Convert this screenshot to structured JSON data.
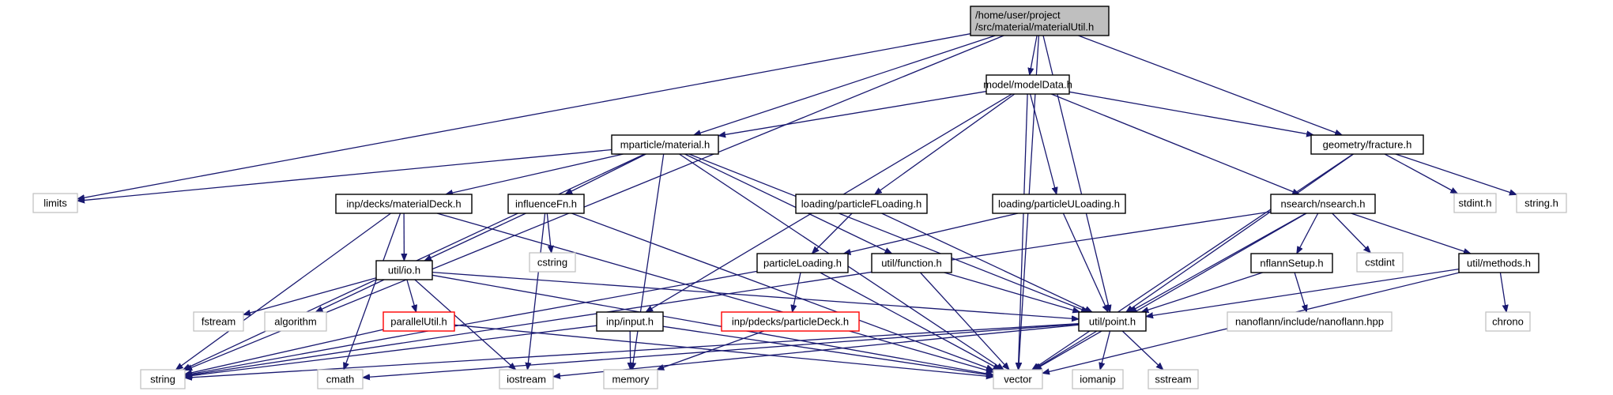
{
  "graph": {
    "title_node": "root",
    "nodes": [
      {
        "id": "root",
        "kind": "root",
        "lines": [
          "/home/user/project",
          "/src/material/materialUtil.h"
        ]
      },
      {
        "id": "modelData",
        "kind": "box",
        "lines": [
          "model/modelData.h"
        ]
      },
      {
        "id": "material",
        "kind": "box",
        "lines": [
          "mparticle/material.h"
        ]
      },
      {
        "id": "fracture",
        "kind": "box",
        "lines": [
          "geometry/fracture.h"
        ]
      },
      {
        "id": "materialDeck",
        "kind": "box",
        "lines": [
          "inp/decks/materialDeck.h"
        ]
      },
      {
        "id": "influenceFn",
        "kind": "box",
        "lines": [
          "influenceFn.h"
        ]
      },
      {
        "id": "pFLoading",
        "kind": "box",
        "lines": [
          "loading/particleFLoading.h"
        ]
      },
      {
        "id": "pULoading",
        "kind": "box",
        "lines": [
          "loading/particleULoading.h"
        ]
      },
      {
        "id": "nsearch",
        "kind": "box",
        "lines": [
          "nsearch/nsearch.h"
        ]
      },
      {
        "id": "io",
        "kind": "box",
        "lines": [
          "util/io.h"
        ]
      },
      {
        "id": "particleLoading",
        "kind": "box",
        "lines": [
          "particleLoading.h"
        ]
      },
      {
        "id": "function",
        "kind": "box",
        "lines": [
          "util/function.h"
        ]
      },
      {
        "id": "nflannSetup",
        "kind": "box",
        "lines": [
          "nflannSetup.h"
        ]
      },
      {
        "id": "methods",
        "kind": "box",
        "lines": [
          "util/methods.h"
        ]
      },
      {
        "id": "parallelUtil",
        "kind": "red",
        "lines": [
          "parallelUtil.h"
        ]
      },
      {
        "id": "input",
        "kind": "box",
        "lines": [
          "inp/input.h"
        ]
      },
      {
        "id": "particleDeck",
        "kind": "red",
        "lines": [
          "inp/pdecks/particleDeck.h"
        ]
      },
      {
        "id": "point",
        "kind": "box",
        "lines": [
          "util/point.h"
        ]
      },
      {
        "id": "limits",
        "kind": "ext",
        "lines": [
          "limits"
        ]
      },
      {
        "id": "cstring",
        "kind": "ext",
        "lines": [
          "cstring"
        ]
      },
      {
        "id": "cstdint",
        "kind": "ext",
        "lines": [
          "cstdint"
        ]
      },
      {
        "id": "stdint",
        "kind": "ext",
        "lines": [
          "stdint.h"
        ]
      },
      {
        "id": "stringh",
        "kind": "ext",
        "lines": [
          "string.h"
        ]
      },
      {
        "id": "fstream",
        "kind": "ext",
        "lines": [
          "fstream"
        ]
      },
      {
        "id": "algorithm",
        "kind": "ext",
        "lines": [
          "algorithm"
        ]
      },
      {
        "id": "nanoflann",
        "kind": "ext",
        "lines": [
          "nanoflann/include/nanoflann.hpp"
        ]
      },
      {
        "id": "chrono",
        "kind": "ext",
        "lines": [
          "chrono"
        ]
      },
      {
        "id": "string",
        "kind": "ext",
        "lines": [
          "string"
        ]
      },
      {
        "id": "cmath",
        "kind": "ext",
        "lines": [
          "cmath"
        ]
      },
      {
        "id": "iostream",
        "kind": "ext",
        "lines": [
          "iostream"
        ]
      },
      {
        "id": "memory",
        "kind": "ext",
        "lines": [
          "memory"
        ]
      },
      {
        "id": "vector",
        "kind": "ext",
        "lines": [
          "vector"
        ]
      },
      {
        "id": "iomanip",
        "kind": "ext",
        "lines": [
          "iomanip"
        ]
      },
      {
        "id": "sstream",
        "kind": "ext",
        "lines": [
          "sstream"
        ]
      }
    ],
    "edges": [
      [
        "root",
        "modelData"
      ],
      [
        "root",
        "material"
      ],
      [
        "root",
        "fracture"
      ],
      [
        "root",
        "point"
      ],
      [
        "root",
        "limits"
      ],
      [
        "root",
        "string"
      ],
      [
        "root",
        "vector"
      ],
      [
        "modelData",
        "material"
      ],
      [
        "modelData",
        "fracture"
      ],
      [
        "modelData",
        "pFLoading"
      ],
      [
        "modelData",
        "pULoading"
      ],
      [
        "modelData",
        "nsearch"
      ],
      [
        "modelData",
        "input"
      ],
      [
        "modelData",
        "vector"
      ],
      [
        "material",
        "materialDeck"
      ],
      [
        "material",
        "influenceFn"
      ],
      [
        "material",
        "function"
      ],
      [
        "material",
        "point"
      ],
      [
        "material",
        "limits"
      ],
      [
        "material",
        "string"
      ],
      [
        "material",
        "memory"
      ],
      [
        "material",
        "vector"
      ],
      [
        "fracture",
        "point"
      ],
      [
        "fracture",
        "stdint"
      ],
      [
        "fracture",
        "stringh"
      ],
      [
        "fracture",
        "vector"
      ],
      [
        "materialDeck",
        "io"
      ],
      [
        "materialDeck",
        "string"
      ],
      [
        "materialDeck",
        "cmath"
      ],
      [
        "materialDeck",
        "vector"
      ],
      [
        "influenceFn",
        "io"
      ],
      [
        "influenceFn",
        "cstring"
      ],
      [
        "influenceFn",
        "iostream"
      ],
      [
        "influenceFn",
        "vector"
      ],
      [
        "pFLoading",
        "particleLoading"
      ],
      [
        "pFLoading",
        "point"
      ],
      [
        "pULoading",
        "particleLoading"
      ],
      [
        "pULoading",
        "point"
      ],
      [
        "nsearch",
        "nflannSetup"
      ],
      [
        "nsearch",
        "methods"
      ],
      [
        "nsearch",
        "point"
      ],
      [
        "nsearch",
        "cstdint"
      ],
      [
        "nsearch",
        "string"
      ],
      [
        "nsearch",
        "vector"
      ],
      [
        "io",
        "fstream"
      ],
      [
        "io",
        "algorithm"
      ],
      [
        "io",
        "parallelUtil"
      ],
      [
        "io",
        "point"
      ],
      [
        "io",
        "iostream"
      ],
      [
        "io",
        "vector"
      ],
      [
        "particleLoading",
        "particleDeck"
      ],
      [
        "particleLoading",
        "string"
      ],
      [
        "particleLoading",
        "vector"
      ],
      [
        "function",
        "point"
      ],
      [
        "function",
        "vector"
      ],
      [
        "nflannSetup",
        "point"
      ],
      [
        "nflannSetup",
        "nanoflann"
      ],
      [
        "methods",
        "point"
      ],
      [
        "methods",
        "chrono"
      ],
      [
        "methods",
        "vector"
      ],
      [
        "parallelUtil",
        "string"
      ],
      [
        "parallelUtil",
        "vector"
      ],
      [
        "input",
        "string"
      ],
      [
        "input",
        "memory"
      ],
      [
        "input",
        "vector"
      ],
      [
        "particleDeck",
        "memory"
      ],
      [
        "point",
        "cmath"
      ],
      [
        "point",
        "string"
      ],
      [
        "point",
        "vector"
      ],
      [
        "point",
        "iostream"
      ],
      [
        "point",
        "iomanip"
      ],
      [
        "point",
        "sstream"
      ]
    ]
  }
}
